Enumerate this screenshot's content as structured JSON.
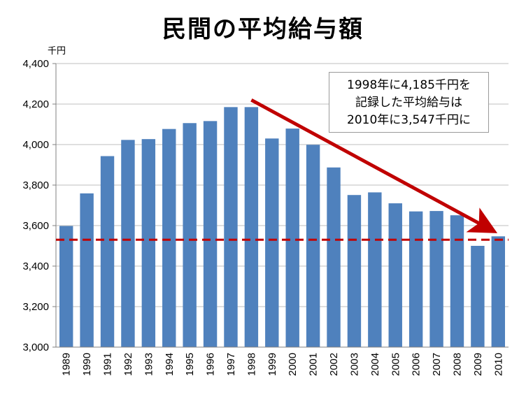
{
  "title": "民間の平均給与額",
  "unit_label": "千円",
  "annotation": {
    "lines": [
      "1998年に4,185千円を",
      "記録した平均給与は",
      "2010年に3,547千円に"
    ]
  },
  "colors": {
    "bar": "#4f81bd",
    "arrow": "#c00000",
    "reference_line": "#c00000",
    "grid": "#bfbfbf"
  },
  "chart_data": {
    "type": "bar",
    "title": "民間の平均給与額",
    "ylabel": "千円",
    "xlabel": "",
    "ylim": [
      3000,
      4400
    ],
    "yticks": [
      3000,
      3200,
      3400,
      3600,
      3800,
      4000,
      4200,
      4400
    ],
    "ytick_labels": [
      "3,000",
      "3,200",
      "3,400",
      "3,600",
      "3,800",
      "4,000",
      "4,200",
      "4,400"
    ],
    "grid": true,
    "legend": "none",
    "categories": [
      "1989",
      "1990",
      "1991",
      "1992",
      "1993",
      "1994",
      "1995",
      "1996",
      "1997",
      "1998",
      "1999",
      "2000",
      "2001",
      "2002",
      "2003",
      "2004",
      "2005",
      "2006",
      "2007",
      "2008",
      "2009",
      "2010"
    ],
    "values": [
      3598,
      3759,
      3943,
      4023,
      4027,
      4077,
      4106,
      4116,
      4185,
      4185,
      4030,
      4079,
      3999,
      3887,
      3751,
      3764,
      3710,
      3670,
      3672,
      3651,
      3500,
      3547
    ],
    "reference_line": {
      "value": 3530,
      "style": "dashed"
    },
    "annotations": [
      {
        "type": "arrow",
        "from_category": "1998",
        "from_value": 4220,
        "to_category": "2010",
        "to_value": 3565
      },
      {
        "type": "text",
        "text": "1998年に4,185千円を記録した平均給与は2010年に3,547千円に"
      }
    ]
  }
}
